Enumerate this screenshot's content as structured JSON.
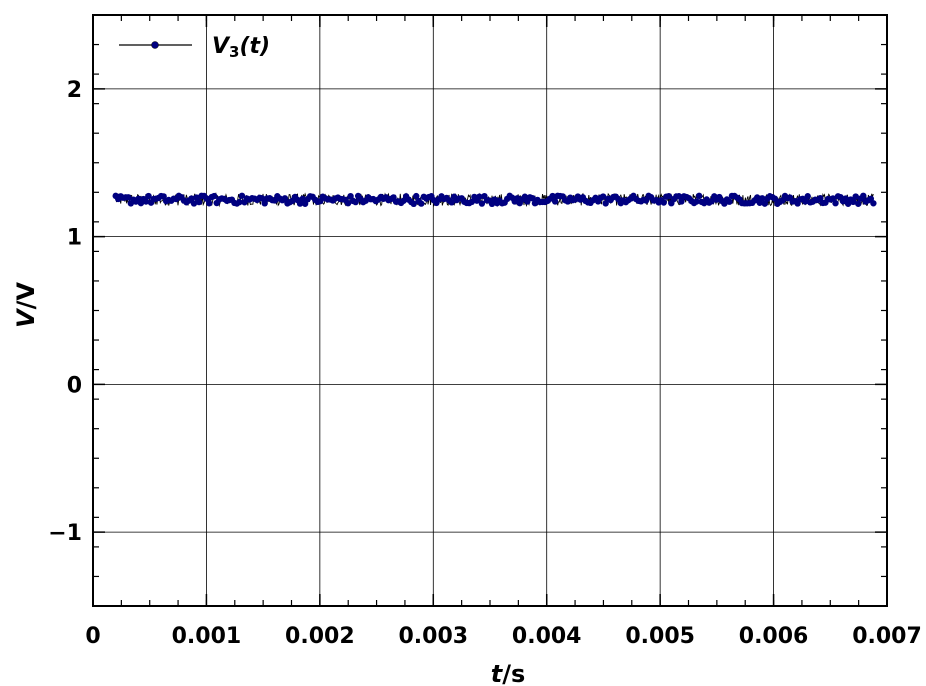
{
  "chart_data": {
    "type": "line",
    "title": "",
    "xlabel": {
      "var": "t",
      "unit": "s"
    },
    "ylabel": {
      "var": "V",
      "unit": "V"
    },
    "xlim": [
      0,
      0.007
    ],
    "ylim": [
      -1.5,
      2.5
    ],
    "xticks": [
      0,
      0.001,
      0.002,
      0.003,
      0.004,
      0.005,
      0.006,
      0.007
    ],
    "xtick_labels": [
      "0",
      "0.001",
      "0.002",
      "0.003",
      "0.004",
      "0.005",
      "0.006",
      "0.007"
    ],
    "yticks": [
      -1,
      0,
      1,
      2
    ],
    "ytick_labels": [
      "−1",
      "0",
      "1",
      "2"
    ],
    "grid": true,
    "legend_position": "top-left",
    "series": [
      {
        "name": "V3(t)",
        "legend": {
          "var": "V",
          "sub": "3",
          "rest": "(t)"
        },
        "color": "#000080",
        "line_color": "#000000",
        "marker": "circle",
        "x_start": 0.0002,
        "x_end": 0.00688,
        "mean": 1.25,
        "noise_amplitude": 0.04
      }
    ]
  }
}
